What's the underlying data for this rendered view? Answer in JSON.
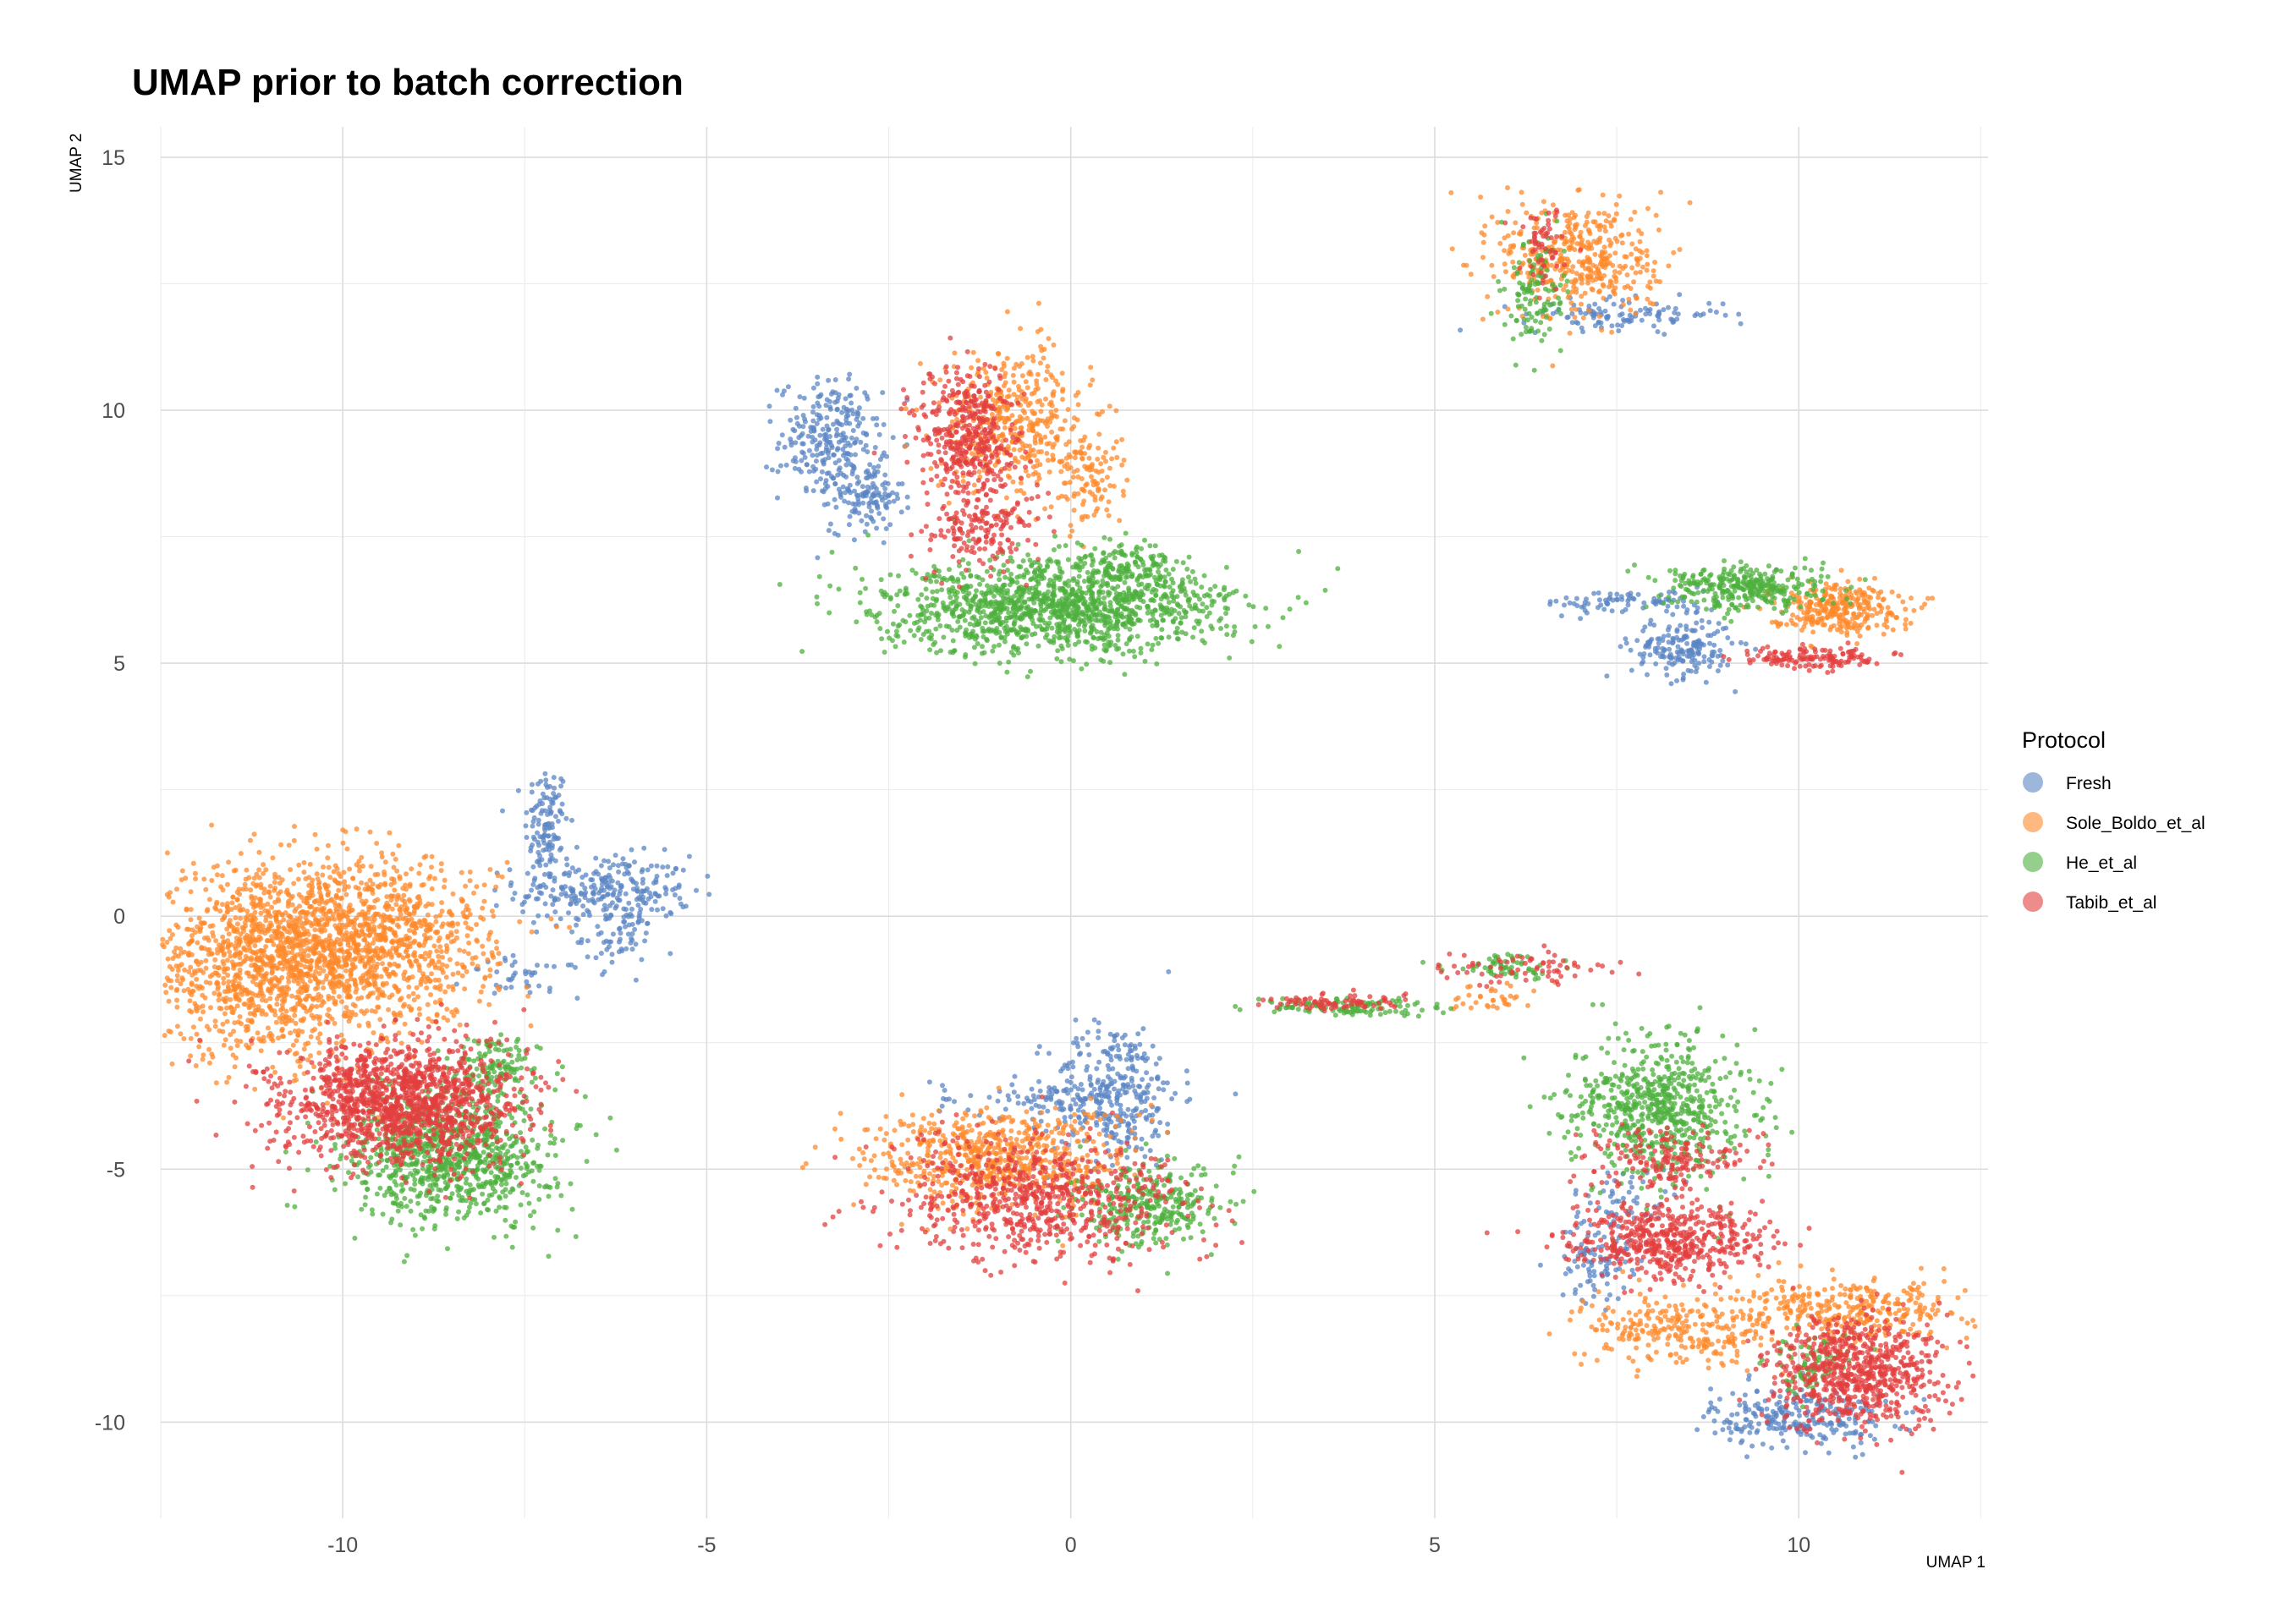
{
  "chart_data": {
    "type": "scatter",
    "title": "UMAP prior to batch correction",
    "xlabel": "UMAP 1",
    "ylabel": "UMAP 2",
    "xlim": [
      -12.5,
      12.6
    ],
    "ylim": [
      -11.9,
      15.6
    ],
    "x_ticks": [
      -10,
      -5,
      0,
      5,
      10
    ],
    "y_ticks": [
      -10,
      -5,
      0,
      5,
      10,
      15
    ],
    "x_tick_labels": [
      "-10",
      "-5",
      "0",
      "5",
      "10"
    ],
    "y_tick_labels": [
      "-10",
      "-5",
      "0",
      "5",
      "10",
      "15"
    ],
    "grid": true,
    "legend": {
      "title": "Protocol",
      "position": "right",
      "entries": [
        "Fresh",
        "Sole_Boldo_et_al",
        "He_et_al",
        "Tabib_et_al"
      ]
    },
    "series": [
      {
        "name": "Fresh",
        "color": "#5b85c4",
        "clusters": [
          {
            "center": [
              -7.2,
              1.8
            ],
            "spread": [
              0.15,
              0.6
            ],
            "n": 120
          },
          {
            "center": [
              -6.4,
              0.5
            ],
            "spread": [
              0.6,
              0.35
            ],
            "n": 260
          },
          {
            "center": [
              -6.2,
              -0.4
            ],
            "spread": [
              0.25,
              0.3
            ],
            "n": 60
          },
          {
            "center": [
              -7.5,
              -1.2
            ],
            "spread": [
              0.4,
              0.2
            ],
            "n": 40
          },
          {
            "center": [
              -3.3,
              9.4
            ],
            "spread": [
              0.35,
              0.6
            ],
            "n": 260
          },
          {
            "center": [
              -2.8,
              8.3
            ],
            "spread": [
              0.25,
              0.35
            ],
            "n": 120
          },
          {
            "center": [
              0.6,
              -3.5
            ],
            "spread": [
              0.45,
              0.7
            ],
            "n": 320
          },
          {
            "center": [
              -0.3,
              -3.6
            ],
            "spread": [
              0.8,
              0.2
            ],
            "n": 80
          },
          {
            "center": [
              7.6,
              11.9
            ],
            "spread": [
              0.7,
              0.15
            ],
            "n": 110
          },
          {
            "center": [
              8.4,
              5.3
            ],
            "spread": [
              0.35,
              0.3
            ],
            "n": 180
          },
          {
            "center": [
              7.7,
              6.2
            ],
            "spread": [
              0.6,
              0.12
            ],
            "n": 80
          },
          {
            "center": [
              7.2,
              -6.8
            ],
            "spread": [
              0.25,
              0.4
            ],
            "n": 90
          },
          {
            "center": [
              10.0,
              -9.9
            ],
            "spread": [
              0.6,
              0.3
            ],
            "n": 260
          },
          {
            "center": [
              7.6,
              -5.6
            ],
            "spread": [
              0.35,
              0.3
            ],
            "n": 50
          }
        ]
      },
      {
        "name": "Sole_Boldo_et_al",
        "color": "#ff8a2b",
        "clusters": [
          {
            "center": [
              -11.0,
              -0.9
            ],
            "spread": [
              0.9,
              0.9
            ],
            "n": 1300
          },
          {
            "center": [
              -9.5,
              -0.5
            ],
            "spread": [
              0.8,
              0.8
            ],
            "n": 900
          },
          {
            "center": [
              -0.8,
              9.8
            ],
            "spread": [
              0.5,
              0.7
            ],
            "n": 420
          },
          {
            "center": [
              0.2,
              8.7
            ],
            "spread": [
              0.25,
              0.5
            ],
            "n": 110
          },
          {
            "center": [
              7.0,
              13.0
            ],
            "spread": [
              0.55,
              0.6
            ],
            "n": 420
          },
          {
            "center": [
              10.5,
              6.1
            ],
            "spread": [
              0.45,
              0.25
            ],
            "n": 300
          },
          {
            "center": [
              -1.0,
              -4.8
            ],
            "spread": [
              0.9,
              0.5
            ],
            "n": 650
          },
          {
            "center": [
              8.4,
              -8.2
            ],
            "spread": [
              0.7,
              0.35
            ],
            "n": 260
          },
          {
            "center": [
              10.7,
              -7.8
            ],
            "spread": [
              0.8,
              0.3
            ],
            "n": 320
          },
          {
            "center": [
              5.8,
              -1.6
            ],
            "spread": [
              0.3,
              0.15
            ],
            "n": 35
          }
        ]
      },
      {
        "name": "He_et_al",
        "color": "#4db03e",
        "clusters": [
          {
            "center": [
              -8.5,
              -4.7
            ],
            "spread": [
              0.7,
              0.65
            ],
            "n": 900
          },
          {
            "center": [
              -7.9,
              -3.0
            ],
            "spread": [
              0.3,
              0.3
            ],
            "n": 120
          },
          {
            "center": [
              -0.2,
              6.1
            ],
            "spread": [
              1.2,
              0.45
            ],
            "n": 1300
          },
          {
            "center": [
              0.7,
              6.9
            ],
            "spread": [
              0.4,
              0.25
            ],
            "n": 140
          },
          {
            "center": [
              6.4,
              12.3
            ],
            "spread": [
              0.2,
              0.6
            ],
            "n": 120
          },
          {
            "center": [
              9.3,
              6.5
            ],
            "spread": [
              0.55,
              0.22
            ],
            "n": 320
          },
          {
            "center": [
              8.1,
              -3.8
            ],
            "spread": [
              0.6,
              0.7
            ],
            "n": 650
          },
          {
            "center": [
              1.1,
              -5.7
            ],
            "spread": [
              0.5,
              0.4
            ],
            "n": 300
          },
          {
            "center": [
              3.7,
              -1.8
            ],
            "spread": [
              0.6,
              0.08
            ],
            "n": 110
          },
          {
            "center": [
              6.0,
              -1.0
            ],
            "spread": [
              0.4,
              0.12
            ],
            "n": 60
          },
          {
            "center": [
              10.2,
              -8.9
            ],
            "spread": [
              0.3,
              0.3
            ],
            "n": 80
          }
        ]
      },
      {
        "name": "Tabib_et_al",
        "color": "#e33f3f",
        "clusters": [
          {
            "center": [
              -9.2,
              -3.7
            ],
            "spread": [
              0.8,
              0.6
            ],
            "n": 1400
          },
          {
            "center": [
              -1.4,
              9.4
            ],
            "spread": [
              0.35,
              0.7
            ],
            "n": 420
          },
          {
            "center": [
              -1.2,
              7.6
            ],
            "spread": [
              0.4,
              0.4
            ],
            "n": 160
          },
          {
            "center": [
              6.5,
              13.3
            ],
            "spread": [
              0.15,
              0.4
            ],
            "n": 60
          },
          {
            "center": [
              10.2,
              5.1
            ],
            "spread": [
              0.5,
              0.12
            ],
            "n": 140
          },
          {
            "center": [
              -0.4,
              -5.6
            ],
            "spread": [
              1.0,
              0.6
            ],
            "n": 700
          },
          {
            "center": [
              8.2,
              -6.4
            ],
            "spread": [
              0.7,
              0.35
            ],
            "n": 520
          },
          {
            "center": [
              8.2,
              -4.8
            ],
            "spread": [
              0.5,
              0.3
            ],
            "n": 180
          },
          {
            "center": [
              10.8,
              -9.0
            ],
            "spread": [
              0.6,
              0.55
            ],
            "n": 700
          },
          {
            "center": [
              3.6,
              -1.7
            ],
            "spread": [
              0.5,
              0.08
            ],
            "n": 80
          },
          {
            "center": [
              6.3,
              -1.0
            ],
            "spread": [
              0.6,
              0.15
            ],
            "n": 70
          }
        ]
      }
    ]
  }
}
